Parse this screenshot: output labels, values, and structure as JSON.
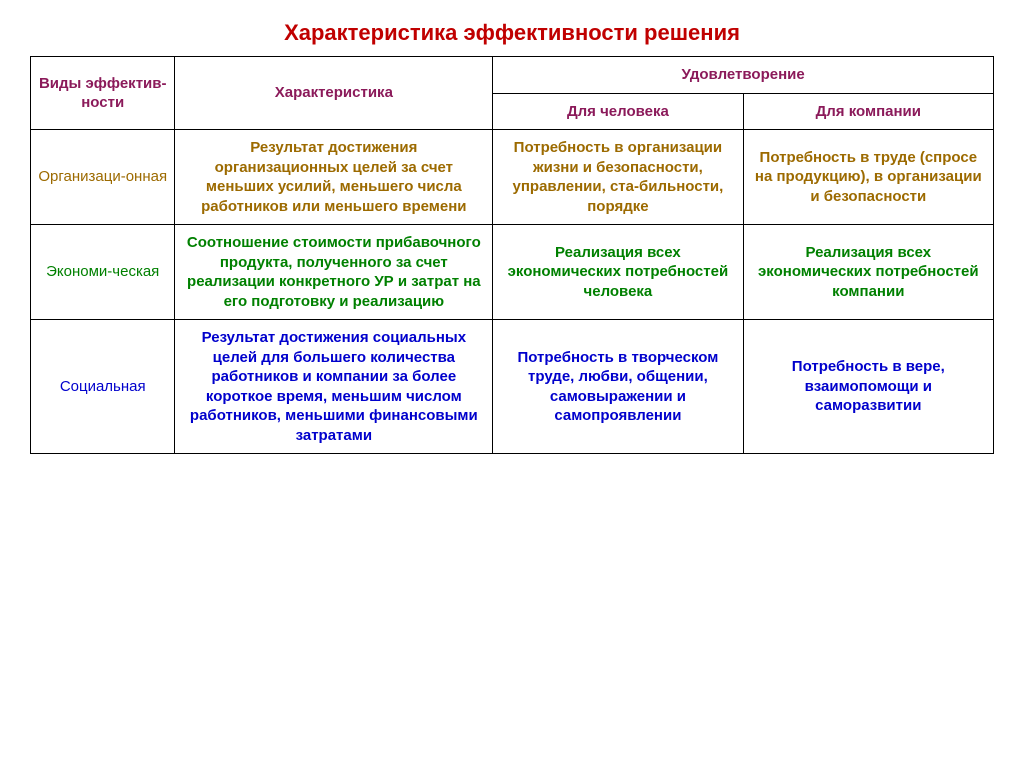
{
  "title": "Характеристика эффективности решения",
  "headers": {
    "types": "Виды эффектив-ности",
    "char": "Характеристика",
    "sat": "Удовлетворение",
    "human": "Для человека",
    "company": "Для компании"
  },
  "rows": [
    {
      "class": "row-org",
      "label": "Организаци-онная",
      "char": "Результат достижения организационных целей за счет меньших усилий, меньшего числа работников или меньшего времени",
      "human": "Потребность в организации жизни и безопасности, управлении, ста-бильности, порядке",
      "company": "Потребность в труде (спросе на продукцию), в организации и безопасности"
    },
    {
      "class": "row-econ",
      "label": "Экономи-ческая",
      "char": "Соотношение стоимости прибавочного продукта, полученного за счет реализации конкретного УР и затрат на его подготовку и реализацию",
      "human": "Реализация всех экономических потребностей человека",
      "company": "Реализация всех экономических потребностей компании"
    },
    {
      "class": "row-soc",
      "label": "Социальная",
      "char": "Результат достижения социальных целей для большего количества работников и компании за более короткое время, меньшим числом работников, меньшими финансовыми затратами",
      "human": "Потребность в творческом труде, любви, общении, самовыражении и самопроявлении",
      "company": "Потребность в вере, взаимопомощи и саморазвитии"
    }
  ],
  "colors": {
    "title": "#c00000",
    "header": "#8b1a5a",
    "org": "#9c6a00",
    "econ": "#008000",
    "soc": "#0000cc",
    "border": "#000000",
    "background": "#ffffff"
  }
}
